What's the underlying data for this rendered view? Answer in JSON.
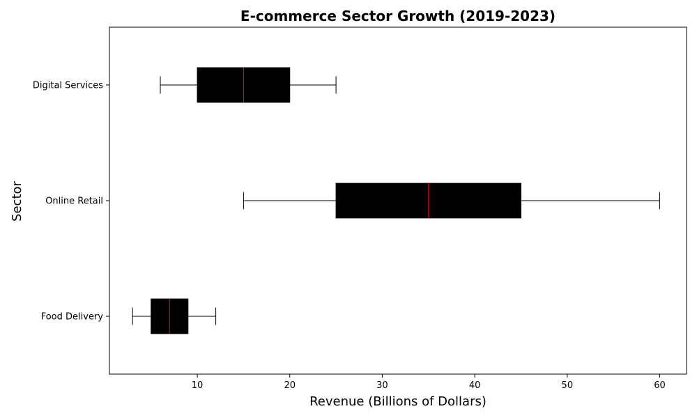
{
  "chart_data": {
    "type": "boxplot",
    "orientation": "horizontal",
    "title": "E-commerce Sector Growth (2019-2023)",
    "xlabel": "Revenue (Billions of Dollars)",
    "ylabel": "Sector",
    "xlim": [
      0.5,
      62.9
    ],
    "xticks": [
      10,
      20,
      30,
      40,
      50,
      60
    ],
    "grid": false,
    "categories": [
      "Food Delivery",
      "Online Retail",
      "Digital Services"
    ],
    "boxes": [
      {
        "category": "Food Delivery",
        "whisker_low": 3,
        "q1": 5,
        "median": 7,
        "q3": 9,
        "whisker_high": 12
      },
      {
        "category": "Online Retail",
        "whisker_low": 15,
        "q1": 25,
        "median": 35,
        "q3": 45,
        "whisker_high": 60
      },
      {
        "category": "Digital Services",
        "whisker_low": 6,
        "q1": 10,
        "median": 15,
        "q3": 20,
        "whisker_high": 25
      }
    ],
    "box_color": "#000000",
    "median_color": "#ff0000",
    "whisker_color": "#000000"
  }
}
